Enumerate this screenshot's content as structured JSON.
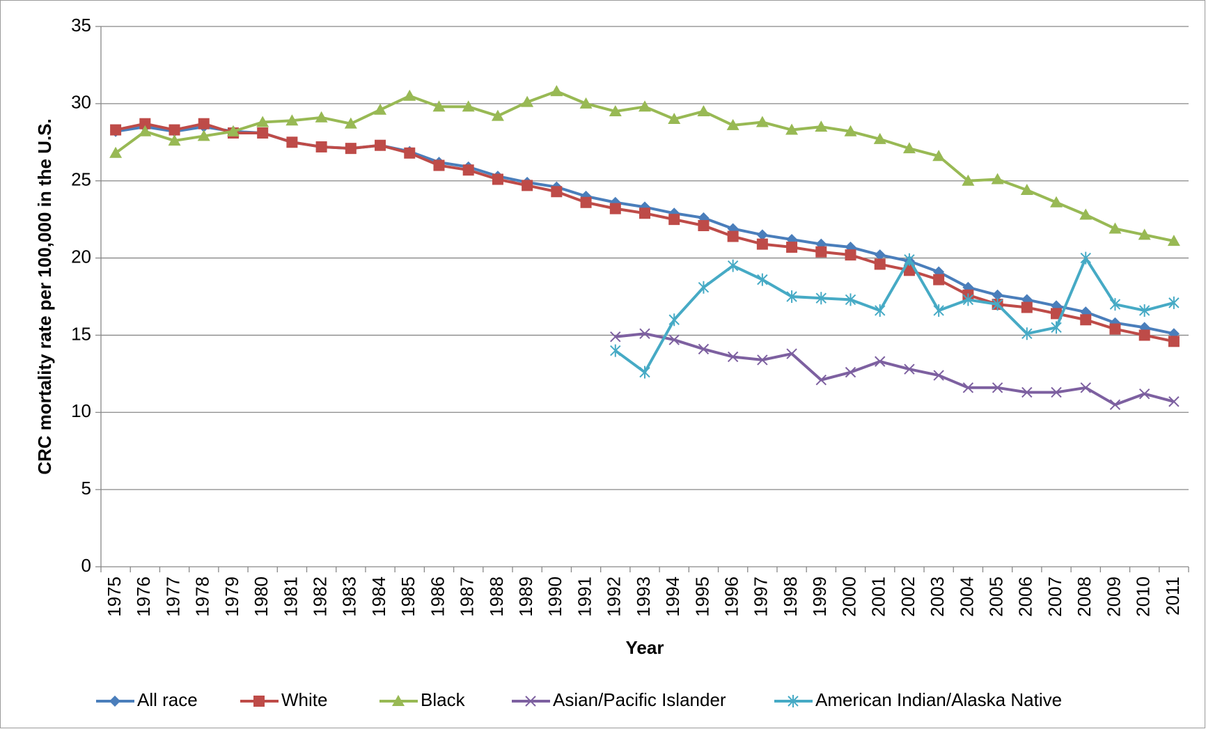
{
  "chart_data": {
    "type": "line",
    "x_label": "Year",
    "y_label": "CRC mortality rate per 100,000 in the U.S.",
    "categories": [
      "1975",
      "1976",
      "1977",
      "1978",
      "1979",
      "1980",
      "1981",
      "1982",
      "1983",
      "1984",
      "1985",
      "1986",
      "1987",
      "1988",
      "1989",
      "1990",
      "1991",
      "1992",
      "1993",
      "1994",
      "1995",
      "1996",
      "1997",
      "1998",
      "1999",
      "2000",
      "2001",
      "2002",
      "2003",
      "2004",
      "2005",
      "2006",
      "2007",
      "2008",
      "2009",
      "2010",
      "2011"
    ],
    "ylim": [
      0,
      35
    ],
    "yticks": [
      0,
      5,
      10,
      15,
      20,
      25,
      30,
      35
    ],
    "grid": true,
    "legend": "bottom",
    "series": [
      {
        "name": "All race",
        "color": "#4a7ebb",
        "marker": "diamond",
        "values": [
          28.2,
          28.5,
          28.2,
          28.5,
          28.2,
          28.1,
          27.5,
          27.2,
          27.1,
          27.3,
          26.9,
          26.2,
          25.9,
          25.3,
          24.9,
          24.6,
          24.0,
          23.6,
          23.3,
          22.9,
          22.6,
          21.9,
          21.5,
          21.2,
          20.9,
          20.7,
          20.2,
          19.8,
          19.1,
          18.1,
          17.6,
          17.3,
          16.9,
          16.5,
          15.8,
          15.5,
          15.1
        ]
      },
      {
        "name": "White",
        "color": "#be4b48",
        "marker": "square",
        "values": [
          28.3,
          28.7,
          28.3,
          28.7,
          28.1,
          28.1,
          27.5,
          27.2,
          27.1,
          27.3,
          26.8,
          26.0,
          25.7,
          25.1,
          24.7,
          24.3,
          23.6,
          23.2,
          22.9,
          22.5,
          22.1,
          21.4,
          20.9,
          20.7,
          20.4,
          20.2,
          19.6,
          19.2,
          18.6,
          17.6,
          17.0,
          16.8,
          16.4,
          16.0,
          15.4,
          15.0,
          14.6
        ]
      },
      {
        "name": "Black",
        "color": "#98b954",
        "marker": "triangle",
        "values": [
          26.8,
          28.2,
          27.6,
          27.9,
          28.2,
          28.8,
          28.9,
          29.1,
          28.7,
          29.6,
          30.5,
          29.8,
          29.8,
          29.2,
          30.1,
          30.8,
          30.0,
          29.5,
          29.8,
          29.0,
          29.5,
          28.6,
          28.8,
          28.3,
          28.5,
          28.2,
          27.7,
          27.1,
          26.6,
          25.0,
          25.1,
          24.4,
          23.6,
          22.8,
          21.9,
          21.5,
          21.1
        ]
      },
      {
        "name": "Asian/Pacific Islander",
        "color": "#7d60a0",
        "marker": "x",
        "values": [
          null,
          null,
          null,
          null,
          null,
          null,
          null,
          null,
          null,
          null,
          null,
          null,
          null,
          null,
          null,
          null,
          null,
          14.9,
          15.1,
          14.7,
          14.1,
          13.6,
          13.4,
          13.8,
          12.1,
          12.6,
          13.3,
          12.8,
          12.4,
          11.6,
          11.6,
          11.3,
          11.3,
          11.6,
          10.5,
          11.2,
          10.7
        ]
      },
      {
        "name": "American Indian/Alaska Native",
        "color": "#46aac5",
        "marker": "star",
        "values": [
          null,
          null,
          null,
          null,
          null,
          null,
          null,
          null,
          null,
          null,
          null,
          null,
          null,
          null,
          null,
          null,
          null,
          14.0,
          12.6,
          16.0,
          18.1,
          19.5,
          18.6,
          17.5,
          17.4,
          17.3,
          16.6,
          19.9,
          16.6,
          17.3,
          17.0,
          15.1,
          15.5,
          20.0,
          17.0,
          16.6,
          17.1
        ]
      }
    ]
  }
}
